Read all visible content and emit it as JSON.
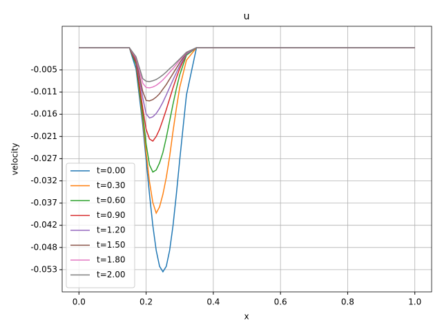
{
  "chart_data": {
    "type": "line",
    "title": "u",
    "x_label": "x",
    "y_label": "velocity",
    "x": [
      0,
      0.15,
      0.17,
      0.19,
      0.2,
      0.21,
      0.22,
      0.23,
      0.24,
      0.25,
      0.26,
      0.27,
      0.28,
      0.29,
      0.3,
      0.32,
      0.35,
      1.0
    ],
    "series": [
      {
        "name": "t=0.00",
        "color": "#1f77b4",
        "values": [
          0,
          0,
          -0.0051,
          -0.0185,
          -0.0268,
          -0.035,
          -0.0425,
          -0.0484,
          -0.0522,
          -0.0535,
          -0.0522,
          -0.0484,
          -0.0425,
          -0.035,
          -0.0268,
          -0.0113,
          0,
          0
        ]
      },
      {
        "name": "t=0.30",
        "color": "#ff7f0e",
        "values": [
          0,
          0,
          -0.004,
          -0.017,
          -0.025,
          -0.032,
          -0.037,
          -0.0395,
          -0.038,
          -0.035,
          -0.031,
          -0.026,
          -0.02,
          -0.0145,
          -0.0095,
          -0.003,
          0,
          0
        ]
      },
      {
        "name": "t=0.60",
        "color": "#2ca02c",
        "values": [
          0,
          0,
          -0.004,
          -0.016,
          -0.023,
          -0.028,
          -0.0297,
          -0.0292,
          -0.0275,
          -0.025,
          -0.0215,
          -0.0175,
          -0.0135,
          -0.0098,
          -0.0065,
          -0.0018,
          0,
          0
        ]
      },
      {
        "name": "t=0.90",
        "color": "#d62728",
        "values": [
          0,
          0,
          -0.0035,
          -0.0145,
          -0.0195,
          -0.0218,
          -0.0223,
          -0.0212,
          -0.0195,
          -0.0172,
          -0.0148,
          -0.0122,
          -0.0096,
          -0.0072,
          -0.005,
          -0.0015,
          0,
          0
        ]
      },
      {
        "name": "t=1.20",
        "color": "#9467bd",
        "values": [
          0,
          0,
          -0.003,
          -0.012,
          -0.0158,
          -0.0168,
          -0.0165,
          -0.0157,
          -0.0145,
          -0.013,
          -0.0113,
          -0.0095,
          -0.0077,
          -0.006,
          -0.0043,
          -0.0015,
          0,
          0
        ]
      },
      {
        "name": "t=1.50",
        "color": "#8c564b",
        "values": [
          0,
          0,
          -0.0028,
          -0.0105,
          -0.0126,
          -0.0127,
          -0.0124,
          -0.0118,
          -0.011,
          -0.0099,
          -0.0088,
          -0.0075,
          -0.0062,
          -0.0049,
          -0.0036,
          -0.0013,
          0,
          0
        ]
      },
      {
        "name": "t=1.80",
        "color": "#e377c2",
        "values": [
          0,
          0,
          -0.0025,
          -0.0085,
          -0.0095,
          -0.0096,
          -0.0094,
          -0.009,
          -0.0084,
          -0.0077,
          -0.0068,
          -0.0059,
          -0.005,
          -0.004,
          -0.003,
          -0.0012,
          0,
          0
        ]
      },
      {
        "name": "t=2.00",
        "color": "#7f7f7f",
        "values": [
          0,
          0,
          -0.0022,
          -0.0074,
          -0.008,
          -0.0081,
          -0.0079,
          -0.0076,
          -0.0071,
          -0.0065,
          -0.0058,
          -0.005,
          -0.0043,
          -0.0035,
          -0.0027,
          -0.0011,
          0,
          0
        ]
      }
    ],
    "xlim": [
      -0.05,
      1.05
    ],
    "xticks": [
      {
        "value": 0,
        "label": "0.0"
      },
      0.2,
      0.4,
      0.6,
      0.8,
      {
        "value": 1,
        "label": "1.0"
      }
    ],
    "ylim": [
      -0.0583,
      0.0051
    ],
    "yticks": [
      {
        "value": -0.0053,
        "label": "-0.005"
      },
      {
        "value": -0.0106,
        "label": "-0.011"
      },
      {
        "value": -0.0159,
        "label": "-0.016"
      },
      {
        "value": -0.0212,
        "label": "-0.021"
      },
      {
        "value": -0.0265,
        "label": "-0.027"
      },
      {
        "value": -0.0318,
        "label": "-0.032"
      },
      {
        "value": -0.0371,
        "label": "-0.037"
      },
      {
        "value": -0.0424,
        "label": "-0.042"
      },
      {
        "value": -0.0477,
        "label": "-0.048"
      },
      {
        "value": -0.053,
        "label": "-0.053"
      }
    ],
    "grid": true,
    "legend": "lower left"
  }
}
